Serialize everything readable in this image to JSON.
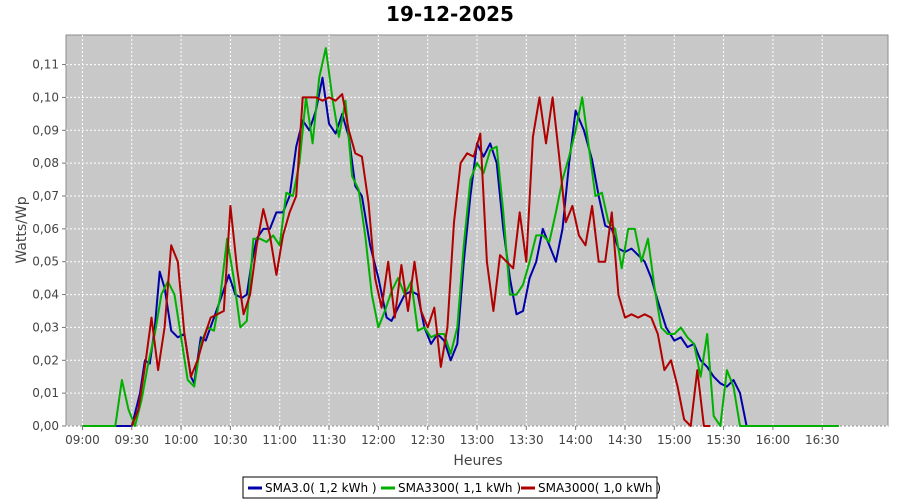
{
  "chart_data": {
    "type": "line",
    "title": "19-12-2025",
    "xlabel": "Heures",
    "ylabel": "Watts/Wp",
    "xlim": [
      "08:50",
      "17:10"
    ],
    "ylim": [
      0,
      0.119
    ],
    "x_ticks": [
      "09:00",
      "09:30",
      "10:00",
      "10:30",
      "11:00",
      "11:30",
      "12:00",
      "12:30",
      "13:00",
      "13:30",
      "14:00",
      "14:30",
      "15:00",
      "15:30",
      "16:00",
      "16:30"
    ],
    "y_ticks": [
      "0,00",
      "0,01",
      "0,02",
      "0,03",
      "0,04",
      "0,05",
      "0,06",
      "0,07",
      "0,08",
      "0,09",
      "0,10",
      "0,11"
    ],
    "grid": true,
    "legend_position": "bottom",
    "series": [
      {
        "name": "SMA3.0( 1,2 kWh )",
        "color": "#0000a8",
        "points": [
          [
            "09:00",
            0.0
          ],
          [
            "09:25",
            0.0
          ],
          [
            "09:30",
            0.0
          ],
          [
            "09:35",
            0.01
          ],
          [
            "09:38",
            0.02
          ],
          [
            "09:41",
            0.019
          ],
          [
            "09:44",
            0.03
          ],
          [
            "09:47",
            0.047
          ],
          [
            "09:50",
            0.042
          ],
          [
            "09:54",
            0.029
          ],
          [
            "09:58",
            0.027
          ],
          [
            "10:02",
            0.028
          ],
          [
            "10:06",
            0.015
          ],
          [
            "10:08",
            0.013
          ],
          [
            "10:12",
            0.027
          ],
          [
            "10:15",
            0.026
          ],
          [
            "10:20",
            0.033
          ],
          [
            "10:25",
            0.04
          ],
          [
            "10:29",
            0.046
          ],
          [
            "10:33",
            0.04
          ],
          [
            "10:37",
            0.039
          ],
          [
            "10:40",
            0.04
          ],
          [
            "10:43",
            0.05
          ],
          [
            "10:46",
            0.057
          ],
          [
            "10:50",
            0.06
          ],
          [
            "10:54",
            0.06
          ],
          [
            "10:58",
            0.065
          ],
          [
            "11:02",
            0.065
          ],
          [
            "11:06",
            0.07
          ],
          [
            "11:10",
            0.085
          ],
          [
            "11:14",
            0.093
          ],
          [
            "11:18",
            0.09
          ],
          [
            "11:22",
            0.096
          ],
          [
            "11:26",
            0.106
          ],
          [
            "11:30",
            0.092
          ],
          [
            "11:34",
            0.089
          ],
          [
            "11:38",
            0.095
          ],
          [
            "11:42",
            0.088
          ],
          [
            "11:46",
            0.073
          ],
          [
            "11:50",
            0.07
          ],
          [
            "11:55",
            0.055
          ],
          [
            "12:00",
            0.045
          ],
          [
            "12:05",
            0.033
          ],
          [
            "12:08",
            0.032
          ],
          [
            "12:12",
            0.036
          ],
          [
            "12:16",
            0.04
          ],
          [
            "12:20",
            0.041
          ],
          [
            "12:24",
            0.04
          ],
          [
            "12:28",
            0.03
          ],
          [
            "12:32",
            0.025
          ],
          [
            "12:36",
            0.028
          ],
          [
            "12:40",
            0.026
          ],
          [
            "12:44",
            0.02
          ],
          [
            "12:48",
            0.025
          ],
          [
            "12:52",
            0.05
          ],
          [
            "12:56",
            0.07
          ],
          [
            "13:00",
            0.086
          ],
          [
            "13:04",
            0.082
          ],
          [
            "13:08",
            0.086
          ],
          [
            "13:12",
            0.08
          ],
          [
            "13:16",
            0.06
          ],
          [
            "13:20",
            0.045
          ],
          [
            "13:24",
            0.034
          ],
          [
            "13:28",
            0.035
          ],
          [
            "13:32",
            0.045
          ],
          [
            "13:36",
            0.05
          ],
          [
            "13:40",
            0.06
          ],
          [
            "13:44",
            0.055
          ],
          [
            "13:48",
            0.05
          ],
          [
            "13:52",
            0.06
          ],
          [
            "13:56",
            0.08
          ],
          [
            "14:00",
            0.096
          ],
          [
            "14:05",
            0.09
          ],
          [
            "14:10",
            0.081
          ],
          [
            "14:14",
            0.07
          ],
          [
            "14:18",
            0.061
          ],
          [
            "14:22",
            0.06
          ],
          [
            "14:26",
            0.054
          ],
          [
            "14:30",
            0.053
          ],
          [
            "14:34",
            0.054
          ],
          [
            "14:38",
            0.052
          ],
          [
            "14:42",
            0.05
          ],
          [
            "14:46",
            0.045
          ],
          [
            "14:50",
            0.038
          ],
          [
            "14:55",
            0.03
          ],
          [
            "15:00",
            0.026
          ],
          [
            "15:04",
            0.027
          ],
          [
            "15:08",
            0.024
          ],
          [
            "15:12",
            0.025
          ],
          [
            "15:16",
            0.02
          ],
          [
            "15:20",
            0.018
          ],
          [
            "15:24",
            0.015
          ],
          [
            "15:28",
            0.013
          ],
          [
            "15:32",
            0.012
          ],
          [
            "15:36",
            0.014
          ],
          [
            "15:40",
            0.01
          ],
          [
            "15:44",
            0.0
          ],
          [
            "15:50",
            0.0
          ],
          [
            "16:40",
            0.0
          ]
        ]
      },
      {
        "name": "SMA3300( 1,1 kWh )",
        "color": "#00b000",
        "points": [
          [
            "09:00",
            0.0
          ],
          [
            "09:15",
            0.0
          ],
          [
            "09:20",
            0.0
          ],
          [
            "09:24",
            0.014
          ],
          [
            "09:28",
            0.005
          ],
          [
            "09:32",
            0.0
          ],
          [
            "09:36",
            0.008
          ],
          [
            "09:40",
            0.019
          ],
          [
            "09:44",
            0.028
          ],
          [
            "09:48",
            0.04
          ],
          [
            "09:52",
            0.044
          ],
          [
            "09:56",
            0.04
          ],
          [
            "10:00",
            0.027
          ],
          [
            "10:04",
            0.014
          ],
          [
            "10:08",
            0.012
          ],
          [
            "10:12",
            0.025
          ],
          [
            "10:16",
            0.03
          ],
          [
            "10:20",
            0.029
          ],
          [
            "10:24",
            0.04
          ],
          [
            "10:28",
            0.057
          ],
          [
            "10:32",
            0.045
          ],
          [
            "10:36",
            0.03
          ],
          [
            "10:40",
            0.032
          ],
          [
            "10:44",
            0.057
          ],
          [
            "10:48",
            0.057
          ],
          [
            "10:52",
            0.056
          ],
          [
            "10:56",
            0.058
          ],
          [
            "11:00",
            0.055
          ],
          [
            "11:04",
            0.071
          ],
          [
            "11:08",
            0.07
          ],
          [
            "11:12",
            0.08
          ],
          [
            "11:16",
            0.1
          ],
          [
            "11:20",
            0.086
          ],
          [
            "11:24",
            0.106
          ],
          [
            "11:28",
            0.115
          ],
          [
            "11:32",
            0.1
          ],
          [
            "11:36",
            0.088
          ],
          [
            "11:40",
            0.099
          ],
          [
            "11:44",
            0.076
          ],
          [
            "11:48",
            0.072
          ],
          [
            "11:52",
            0.058
          ],
          [
            "11:56",
            0.04
          ],
          [
            "12:00",
            0.03
          ],
          [
            "12:04",
            0.035
          ],
          [
            "12:08",
            0.041
          ],
          [
            "12:12",
            0.045
          ],
          [
            "12:16",
            0.04
          ],
          [
            "12:20",
            0.044
          ],
          [
            "12:24",
            0.029
          ],
          [
            "12:28",
            0.03
          ],
          [
            "12:32",
            0.027
          ],
          [
            "12:36",
            0.028
          ],
          [
            "12:40",
            0.028
          ],
          [
            "12:44",
            0.022
          ],
          [
            "12:48",
            0.03
          ],
          [
            "12:52",
            0.055
          ],
          [
            "12:56",
            0.075
          ],
          [
            "13:00",
            0.08
          ],
          [
            "13:04",
            0.077
          ],
          [
            "13:08",
            0.084
          ],
          [
            "13:12",
            0.085
          ],
          [
            "13:16",
            0.065
          ],
          [
            "13:20",
            0.04
          ],
          [
            "13:24",
            0.04
          ],
          [
            "13:28",
            0.043
          ],
          [
            "13:32",
            0.05
          ],
          [
            "13:36",
            0.058
          ],
          [
            "13:40",
            0.058
          ],
          [
            "13:44",
            0.056
          ],
          [
            "13:48",
            0.065
          ],
          [
            "13:52",
            0.075
          ],
          [
            "13:56",
            0.082
          ],
          [
            "14:00",
            0.09
          ],
          [
            "14:04",
            0.1
          ],
          [
            "14:08",
            0.085
          ],
          [
            "14:12",
            0.07
          ],
          [
            "14:16",
            0.071
          ],
          [
            "14:20",
            0.062
          ],
          [
            "14:24",
            0.06
          ],
          [
            "14:28",
            0.048
          ],
          [
            "14:32",
            0.06
          ],
          [
            "14:36",
            0.06
          ],
          [
            "14:40",
            0.05
          ],
          [
            "14:44",
            0.057
          ],
          [
            "14:48",
            0.042
          ],
          [
            "14:52",
            0.03
          ],
          [
            "14:56",
            0.028
          ],
          [
            "15:00",
            0.028
          ],
          [
            "15:04",
            0.03
          ],
          [
            "15:08",
            0.027
          ],
          [
            "15:12",
            0.025
          ],
          [
            "15:16",
            0.015
          ],
          [
            "15:20",
            0.028
          ],
          [
            "15:24",
            0.003
          ],
          [
            "15:28",
            0.0
          ],
          [
            "15:32",
            0.017
          ],
          [
            "15:36",
            0.012
          ],
          [
            "15:40",
            0.0
          ],
          [
            "15:46",
            0.0
          ],
          [
            "16:40",
            0.0
          ]
        ]
      },
      {
        "name": "SMA3000( 1,0 kWh )",
        "color": "#b00000",
        "points": [
          [
            "09:30",
            0.0
          ],
          [
            "09:34",
            0.005
          ],
          [
            "09:38",
            0.018
          ],
          [
            "09:42",
            0.033
          ],
          [
            "09:46",
            0.017
          ],
          [
            "09:50",
            0.03
          ],
          [
            "09:54",
            0.055
          ],
          [
            "09:58",
            0.05
          ],
          [
            "10:02",
            0.028
          ],
          [
            "10:06",
            0.015
          ],
          [
            "10:10",
            0.02
          ],
          [
            "10:14",
            0.027
          ],
          [
            "10:18",
            0.033
          ],
          [
            "10:22",
            0.034
          ],
          [
            "10:26",
            0.035
          ],
          [
            "10:30",
            0.067
          ],
          [
            "10:34",
            0.048
          ],
          [
            "10:38",
            0.034
          ],
          [
            "10:42",
            0.04
          ],
          [
            "10:46",
            0.055
          ],
          [
            "10:50",
            0.066
          ],
          [
            "10:54",
            0.058
          ],
          [
            "10:58",
            0.046
          ],
          [
            "11:02",
            0.058
          ],
          [
            "11:06",
            0.065
          ],
          [
            "11:10",
            0.07
          ],
          [
            "11:14",
            0.1
          ],
          [
            "11:18",
            0.1
          ],
          [
            "11:22",
            0.1
          ],
          [
            "11:26",
            0.099
          ],
          [
            "11:30",
            0.1
          ],
          [
            "11:34",
            0.099
          ],
          [
            "11:38",
            0.101
          ],
          [
            "11:42",
            0.09
          ],
          [
            "11:46",
            0.083
          ],
          [
            "11:50",
            0.082
          ],
          [
            "11:54",
            0.068
          ],
          [
            "11:58",
            0.045
          ],
          [
            "12:02",
            0.036
          ],
          [
            "12:06",
            0.05
          ],
          [
            "12:10",
            0.033
          ],
          [
            "12:14",
            0.049
          ],
          [
            "12:18",
            0.035
          ],
          [
            "12:22",
            0.05
          ],
          [
            "12:26",
            0.035
          ],
          [
            "12:30",
            0.03
          ],
          [
            "12:34",
            0.036
          ],
          [
            "12:38",
            0.018
          ],
          [
            "12:42",
            0.03
          ],
          [
            "12:46",
            0.062
          ],
          [
            "12:50",
            0.08
          ],
          [
            "12:54",
            0.083
          ],
          [
            "12:58",
            0.082
          ],
          [
            "13:02",
            0.089
          ],
          [
            "13:06",
            0.05
          ],
          [
            "13:10",
            0.035
          ],
          [
            "13:14",
            0.052
          ],
          [
            "13:18",
            0.05
          ],
          [
            "13:22",
            0.048
          ],
          [
            "13:26",
            0.065
          ],
          [
            "13:30",
            0.05
          ],
          [
            "13:34",
            0.088
          ],
          [
            "13:38",
            0.1
          ],
          [
            "13:42",
            0.086
          ],
          [
            "13:46",
            0.1
          ],
          [
            "13:50",
            0.082
          ],
          [
            "13:54",
            0.062
          ],
          [
            "13:58",
            0.067
          ],
          [
            "14:02",
            0.058
          ],
          [
            "14:06",
            0.055
          ],
          [
            "14:10",
            0.067
          ],
          [
            "14:14",
            0.05
          ],
          [
            "14:18",
            0.05
          ],
          [
            "14:22",
            0.065
          ],
          [
            "14:26",
            0.04
          ],
          [
            "14:30",
            0.033
          ],
          [
            "14:34",
            0.034
          ],
          [
            "14:38",
            0.033
          ],
          [
            "14:42",
            0.034
          ],
          [
            "14:46",
            0.033
          ],
          [
            "14:50",
            0.028
          ],
          [
            "14:54",
            0.017
          ],
          [
            "14:58",
            0.02
          ],
          [
            "15:02",
            0.012
          ],
          [
            "15:06",
            0.002
          ],
          [
            "15:10",
            0.0
          ],
          [
            "15:14",
            0.017
          ],
          [
            "15:18",
            0.0
          ],
          [
            "15:22",
            0.0
          ]
        ]
      }
    ]
  }
}
